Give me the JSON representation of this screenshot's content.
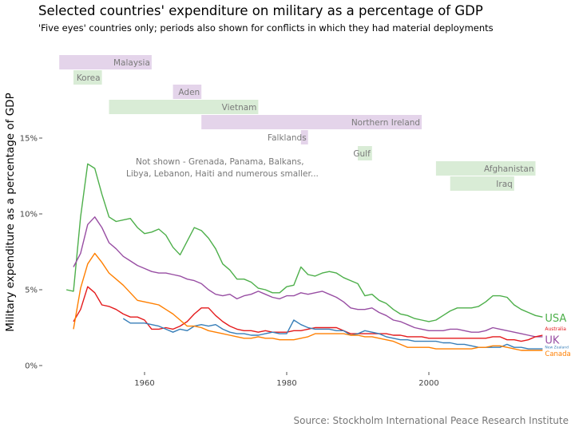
{
  "title": "Selected countries' expenditure on military as a percentage of GDP",
  "subtitle": "'Five eyes' countries only; periods also shown for conflicts in which they had material deployments",
  "caption": "Source: Stockholm International Peace Research Institute",
  "note_lines": [
    "Not shown - Grenada, Panama, Balkans,",
    "Libya, Lebanon, Haiti and numerous smaller..."
  ],
  "chart_data": {
    "type": "line",
    "title": "Selected countries' expenditure on military as a percentage of GDP",
    "xlabel": "",
    "ylabel": "Military expenditure as a percentage of GDP",
    "xlim": [
      1946,
      2020
    ],
    "ylim": [
      0,
      0.2
    ],
    "x_ticks": [
      {
        "value": 1960,
        "label": "1960"
      },
      {
        "value": 1980,
        "label": "1980"
      },
      {
        "value": 2000,
        "label": "2000"
      }
    ],
    "y_ticks": [
      {
        "value": 0,
        "label": "0%"
      },
      {
        "value": 0.05,
        "label": "5%"
      },
      {
        "value": 0.1,
        "label": "10%"
      },
      {
        "value": 0.15,
        "label": "15%"
      }
    ],
    "grid": false,
    "legend": "direct labels at line ends",
    "conflicts": [
      {
        "name": "Malaysia",
        "start": 1948,
        "end": 1960,
        "level": 0,
        "color": "#e4d4ea"
      },
      {
        "name": "Korea",
        "start": 1950,
        "end": 1953,
        "level": 1,
        "color": "#d9ecd6"
      },
      {
        "name": "Aden",
        "start": 1964,
        "end": 1967,
        "level": 2,
        "color": "#e4d4ea"
      },
      {
        "name": "Vietnam",
        "start": 1955,
        "end": 1975,
        "level": 3,
        "color": "#d9ecd6"
      },
      {
        "name": "Northern Ireland",
        "start": 1968,
        "end": 1998,
        "level": 4,
        "color": "#e4d4ea"
      },
      {
        "name": "Falklands",
        "start": 1982,
        "end": 1982,
        "level": 5,
        "color": "#e4d4ea"
      },
      {
        "name": "Gulf",
        "start": 1990,
        "end": 1991,
        "level": 6,
        "color": "#d9ecd6"
      },
      {
        "name": "Afghanistan",
        "start": 2001,
        "end": 2014,
        "level": 7,
        "color": "#d9ecd6"
      },
      {
        "name": "Iraq",
        "start": 2003,
        "end": 2011,
        "level": 8,
        "color": "#d9ecd6"
      }
    ],
    "series": [
      {
        "name": "USA",
        "color": "#4daf4a",
        "label_size": 13,
        "x": [
          1949,
          1950,
          1951,
          1952,
          1953,
          1954,
          1955,
          1956,
          1957,
          1958,
          1959,
          1960,
          1961,
          1962,
          1963,
          1964,
          1965,
          1966,
          1967,
          1968,
          1969,
          1970,
          1971,
          1972,
          1973,
          1974,
          1975,
          1976,
          1977,
          1978,
          1979,
          1980,
          1981,
          1982,
          1983,
          1984,
          1985,
          1986,
          1987,
          1988,
          1989,
          1990,
          1991,
          1992,
          1993,
          1994,
          1995,
          1996,
          1997,
          1998,
          1999,
          2000,
          2001,
          2002,
          2003,
          2004,
          2005,
          2006,
          2007,
          2008,
          2009,
          2010,
          2011,
          2012,
          2013,
          2014,
          2015,
          2016
        ],
        "y": [
          0.05,
          0.049,
          0.098,
          0.133,
          0.13,
          0.113,
          0.098,
          0.095,
          0.096,
          0.097,
          0.091,
          0.087,
          0.088,
          0.09,
          0.086,
          0.078,
          0.073,
          0.082,
          0.091,
          0.089,
          0.084,
          0.077,
          0.067,
          0.063,
          0.057,
          0.057,
          0.055,
          0.051,
          0.05,
          0.048,
          0.048,
          0.052,
          0.053,
          0.065,
          0.06,
          0.059,
          0.061,
          0.062,
          0.061,
          0.058,
          0.056,
          0.054,
          0.046,
          0.047,
          0.043,
          0.041,
          0.037,
          0.034,
          0.033,
          0.031,
          0.03,
          0.029,
          0.03,
          0.033,
          0.036,
          0.038,
          0.038,
          0.038,
          0.039,
          0.042,
          0.046,
          0.046,
          0.045,
          0.04,
          0.037,
          0.035,
          0.033,
          0.032
        ]
      },
      {
        "name": "UK",
        "color": "#984ea3",
        "label_size": 13,
        "x": [
          1950,
          1951,
          1952,
          1953,
          1954,
          1955,
          1956,
          1957,
          1958,
          1959,
          1960,
          1961,
          1962,
          1963,
          1964,
          1965,
          1966,
          1967,
          1968,
          1969,
          1970,
          1971,
          1972,
          1973,
          1974,
          1975,
          1976,
          1977,
          1978,
          1979,
          1980,
          1981,
          1982,
          1983,
          1984,
          1985,
          1986,
          1987,
          1988,
          1989,
          1990,
          1991,
          1992,
          1993,
          1994,
          1995,
          1996,
          1997,
          1998,
          1999,
          2000,
          2001,
          2002,
          2003,
          2004,
          2005,
          2006,
          2007,
          2008,
          2009,
          2010,
          2011,
          2012,
          2013,
          2014,
          2015,
          2016
        ],
        "y": [
          0.065,
          0.074,
          0.093,
          0.098,
          0.091,
          0.081,
          0.077,
          0.072,
          0.069,
          0.066,
          0.064,
          0.062,
          0.061,
          0.061,
          0.06,
          0.059,
          0.057,
          0.056,
          0.054,
          0.05,
          0.047,
          0.046,
          0.047,
          0.044,
          0.046,
          0.047,
          0.049,
          0.047,
          0.045,
          0.044,
          0.046,
          0.046,
          0.048,
          0.047,
          0.048,
          0.049,
          0.047,
          0.045,
          0.042,
          0.038,
          0.037,
          0.037,
          0.038,
          0.035,
          0.033,
          0.03,
          0.029,
          0.027,
          0.025,
          0.024,
          0.023,
          0.023,
          0.023,
          0.024,
          0.024,
          0.023,
          0.022,
          0.022,
          0.023,
          0.025,
          0.024,
          0.023,
          0.022,
          0.021,
          0.02,
          0.019,
          0.019
        ]
      },
      {
        "name": "Australia",
        "color": "#e41a1c",
        "label_size": 6,
        "x": [
          1950,
          1951,
          1952,
          1953,
          1954,
          1955,
          1956,
          1957,
          1958,
          1959,
          1960,
          1961,
          1962,
          1963,
          1964,
          1965,
          1966,
          1967,
          1968,
          1969,
          1970,
          1971,
          1972,
          1973,
          1974,
          1975,
          1976,
          1977,
          1978,
          1979,
          1980,
          1981,
          1982,
          1983,
          1984,
          1985,
          1986,
          1987,
          1988,
          1989,
          1990,
          1991,
          1992,
          1993,
          1994,
          1995,
          1996,
          1997,
          1998,
          1999,
          2000,
          2001,
          2002,
          2003,
          2004,
          2005,
          2006,
          2007,
          2008,
          2009,
          2010,
          2011,
          2012,
          2013,
          2014,
          2015,
          2016
        ],
        "y": [
          0.029,
          0.037,
          0.052,
          0.048,
          0.04,
          0.039,
          0.037,
          0.034,
          0.032,
          0.032,
          0.03,
          0.024,
          0.024,
          0.025,
          0.024,
          0.026,
          0.029,
          0.034,
          0.038,
          0.038,
          0.033,
          0.029,
          0.026,
          0.024,
          0.023,
          0.023,
          0.022,
          0.023,
          0.022,
          0.022,
          0.022,
          0.023,
          0.023,
          0.024,
          0.025,
          0.025,
          0.025,
          0.025,
          0.023,
          0.021,
          0.021,
          0.021,
          0.021,
          0.021,
          0.021,
          0.02,
          0.02,
          0.019,
          0.019,
          0.019,
          0.018,
          0.018,
          0.018,
          0.018,
          0.018,
          0.018,
          0.018,
          0.018,
          0.018,
          0.019,
          0.019,
          0.017,
          0.017,
          0.016,
          0.017,
          0.019,
          0.02
        ]
      },
      {
        "name": "New Zealand",
        "color": "#377eb8",
        "label_size": 4.5,
        "x": [
          1957,
          1958,
          1959,
          1960,
          1961,
          1962,
          1963,
          1964,
          1965,
          1966,
          1967,
          1968,
          1969,
          1970,
          1971,
          1972,
          1973,
          1974,
          1975,
          1976,
          1977,
          1978,
          1979,
          1980,
          1981,
          1982,
          1983,
          1984,
          1985,
          1986,
          1987,
          1988,
          1989,
          1990,
          1991,
          1992,
          1993,
          1994,
          1995,
          1996,
          1997,
          1998,
          1999,
          2000,
          2001,
          2002,
          2003,
          2004,
          2005,
          2006,
          2007,
          2008,
          2009,
          2010,
          2011,
          2012,
          2013,
          2014,
          2015,
          2016
        ],
        "y": [
          0.031,
          0.028,
          0.028,
          0.028,
          0.027,
          0.026,
          0.024,
          0.022,
          0.024,
          0.023,
          0.026,
          0.027,
          0.026,
          0.027,
          0.024,
          0.022,
          0.021,
          0.021,
          0.02,
          0.02,
          0.021,
          0.022,
          0.021,
          0.021,
          0.03,
          0.027,
          0.025,
          0.024,
          0.024,
          0.024,
          0.023,
          0.023,
          0.02,
          0.021,
          0.023,
          0.022,
          0.021,
          0.019,
          0.018,
          0.017,
          0.017,
          0.016,
          0.016,
          0.016,
          0.016,
          0.015,
          0.015,
          0.014,
          0.014,
          0.013,
          0.012,
          0.012,
          0.012,
          0.012,
          0.014,
          0.012,
          0.012,
          0.011,
          0.011,
          0.011
        ]
      },
      {
        "name": "Canada",
        "color": "#ff7f00",
        "label_size": 8.5,
        "x": [
          1950,
          1951,
          1952,
          1953,
          1954,
          1955,
          1956,
          1957,
          1958,
          1959,
          1960,
          1961,
          1962,
          1963,
          1964,
          1965,
          1966,
          1967,
          1968,
          1969,
          1970,
          1971,
          1972,
          1973,
          1974,
          1975,
          1976,
          1977,
          1978,
          1979,
          1980,
          1981,
          1982,
          1983,
          1984,
          1985,
          1986,
          1987,
          1988,
          1989,
          1990,
          1991,
          1992,
          1993,
          1994,
          1995,
          1996,
          1997,
          1998,
          1999,
          2000,
          2001,
          2002,
          2003,
          2004,
          2005,
          2006,
          2007,
          2008,
          2009,
          2010,
          2011,
          2012,
          2013,
          2014,
          2015,
          2016
        ],
        "y": [
          0.024,
          0.051,
          0.067,
          0.074,
          0.068,
          0.061,
          0.057,
          0.053,
          0.048,
          0.043,
          0.042,
          0.041,
          0.04,
          0.037,
          0.034,
          0.03,
          0.026,
          0.026,
          0.025,
          0.023,
          0.022,
          0.021,
          0.02,
          0.019,
          0.018,
          0.018,
          0.019,
          0.018,
          0.018,
          0.017,
          0.017,
          0.017,
          0.018,
          0.019,
          0.021,
          0.021,
          0.021,
          0.021,
          0.021,
          0.02,
          0.02,
          0.019,
          0.019,
          0.018,
          0.017,
          0.016,
          0.014,
          0.012,
          0.012,
          0.012,
          0.012,
          0.011,
          0.011,
          0.011,
          0.011,
          0.011,
          0.011,
          0.012,
          0.012,
          0.013,
          0.013,
          0.012,
          0.011,
          0.01,
          0.01,
          0.01,
          0.01
        ]
      }
    ]
  }
}
